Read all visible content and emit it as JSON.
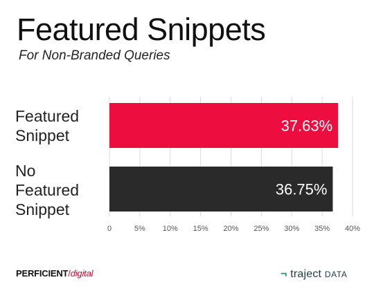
{
  "title": "Featured Snippets",
  "subtitle": "For Non-Branded Queries",
  "chart_data": {
    "type": "bar",
    "orientation": "horizontal",
    "title": "Featured Snippets",
    "subtitle": "For Non-Branded Queries",
    "categories": [
      "Featured\nSnippet",
      "No\nFeatured\nSnippet"
    ],
    "values": [
      37.63,
      36.75
    ],
    "value_labels": [
      "37.63%",
      "36.75%"
    ],
    "bar_colors": [
      "#ee0d3f",
      "#2a2a2a"
    ],
    "xlim": [
      0,
      40
    ],
    "x_ticks": [
      0,
      5,
      10,
      15,
      20,
      25,
      30,
      35,
      40
    ],
    "x_tick_labels": [
      "0",
      "5%",
      "10%",
      "15%",
      "20%",
      "25%",
      "30%",
      "35%",
      "40%"
    ],
    "grid": "vertical",
    "legend": "none",
    "xlabel": "",
    "ylabel": ""
  },
  "footer": {
    "left_brand_main": "PERFICIENT",
    "left_brand_slash": "/",
    "left_brand_sub": "digital",
    "right_brand_mark": "¬",
    "right_brand_main": "traject",
    "right_brand_sub": "DATA"
  },
  "colors": {
    "accent_red": "#ee0d3f",
    "dark_bar": "#2a2a2a",
    "grid": "#d9d9d9",
    "tick_text": "#555555"
  }
}
